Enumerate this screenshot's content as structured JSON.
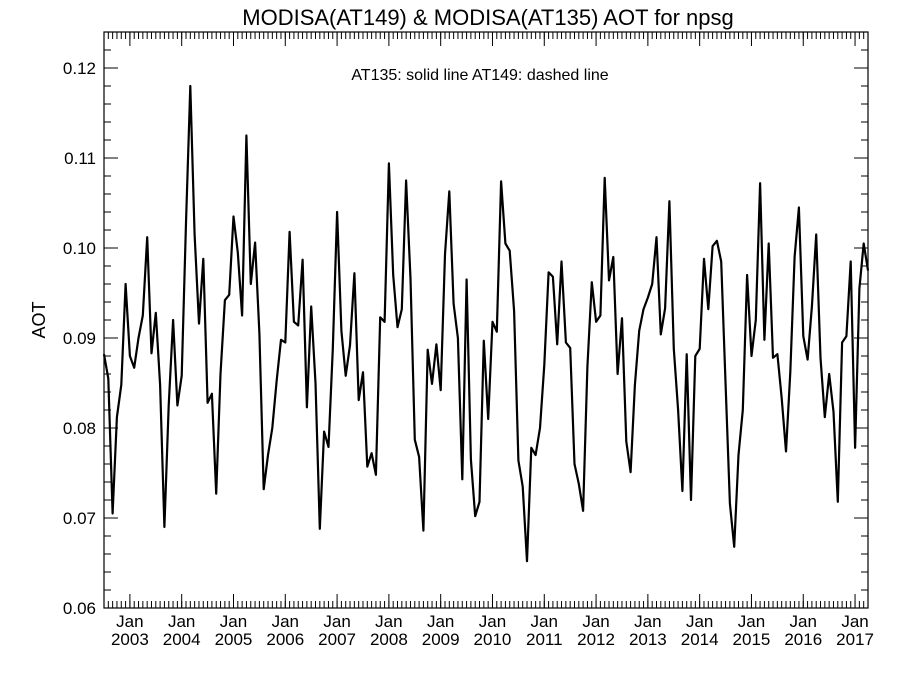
{
  "chart_data": {
    "type": "line",
    "title": "MODISA(AT149) & MODISA(AT135)  AOT for npsg",
    "xlabel": "",
    "ylabel": "AOT",
    "annotation": "AT135: solid line   AT149: dashed line",
    "ylim": [
      0.06,
      0.124
    ],
    "xlim": [
      "2002-07",
      "2017-04"
    ],
    "grid": false,
    "y_ticks": [
      "0.06",
      "0.07",
      "0.08",
      "0.09",
      "0.10",
      "0.11",
      "0.12"
    ],
    "x_ticks": [
      {
        "month": "Jan",
        "year": "2003"
      },
      {
        "month": "Jan",
        "year": "2004"
      },
      {
        "month": "Jan",
        "year": "2005"
      },
      {
        "month": "Jan",
        "year": "2006"
      },
      {
        "month": "Jan",
        "year": "2007"
      },
      {
        "month": "Jan",
        "year": "2008"
      },
      {
        "month": "Jan",
        "year": "2009"
      },
      {
        "month": "Jan",
        "year": "2010"
      },
      {
        "month": "Jan",
        "year": "2011"
      },
      {
        "month": "Jan",
        "year": "2012"
      },
      {
        "month": "Jan",
        "year": "2013"
      },
      {
        "month": "Jan",
        "year": "2014"
      },
      {
        "month": "Jan",
        "year": "2015"
      },
      {
        "month": "Jan",
        "year": "2016"
      },
      {
        "month": "Jan",
        "year": "2017"
      }
    ],
    "series": [
      {
        "style": "solid",
        "color": "#000000",
        "start": "2002-07",
        "values": [
          0.0882,
          0.0855,
          0.0705,
          0.0812,
          0.0848,
          0.096,
          0.088,
          0.0867,
          0.09,
          0.0925,
          0.1012,
          0.0883,
          0.0928,
          0.0848,
          0.069,
          0.0825,
          0.092,
          0.0825,
          0.0858,
          0.1028,
          0.118,
          0.1015,
          0.0916,
          0.0988,
          0.0828,
          0.0838,
          0.0727,
          0.086,
          0.0942,
          0.0948,
          0.1035,
          0.0995,
          0.0925,
          0.1125,
          0.096,
          0.1006,
          0.0905,
          0.0732,
          0.077,
          0.08,
          0.0853,
          0.0898,
          0.0895,
          0.1018,
          0.0918,
          0.0914,
          0.0987,
          0.0823,
          0.0935,
          0.085,
          0.0688,
          0.0796,
          0.0779,
          0.0888,
          0.104,
          0.0908,
          0.0858,
          0.0892,
          0.0972,
          0.0831,
          0.0862,
          0.0757,
          0.0772,
          0.0748,
          0.0923,
          0.0918,
          0.1094,
          0.097,
          0.0912,
          0.0932,
          0.1075,
          0.0966,
          0.0787,
          0.0768,
          0.0686,
          0.0887,
          0.0849,
          0.0893,
          0.0842,
          0.0993,
          0.1063,
          0.0938,
          0.09,
          0.0743,
          0.0965,
          0.0765,
          0.0702,
          0.0718,
          0.0897,
          0.081,
          0.0918,
          0.0907,
          0.1074,
          0.1005,
          0.0997,
          0.093,
          0.0764,
          0.0735,
          0.0652,
          0.0778,
          0.077,
          0.08,
          0.087,
          0.0973,
          0.0968,
          0.0893,
          0.0985,
          0.0895,
          0.0889,
          0.076,
          0.0738,
          0.0708,
          0.0868,
          0.0962,
          0.0918,
          0.0925,
          0.1078,
          0.0964,
          0.099,
          0.086,
          0.0922,
          0.0785,
          0.0751,
          0.0848,
          0.0908,
          0.0932,
          0.0945,
          0.096,
          0.1012,
          0.0904,
          0.0933,
          0.1052,
          0.0888,
          0.082,
          0.073,
          0.0882,
          0.072,
          0.088,
          0.0888,
          0.0988,
          0.0932,
          0.1002,
          0.1008,
          0.0985,
          0.0848,
          0.0716,
          0.0668,
          0.077,
          0.082,
          0.097,
          0.088,
          0.092,
          0.1072,
          0.0898,
          0.1005,
          0.0878,
          0.0882,
          0.0833,
          0.0774,
          0.0862,
          0.099,
          0.1045,
          0.0902,
          0.0876,
          0.0935,
          0.1015,
          0.0878,
          0.0812,
          0.086,
          0.0818,
          0.0718,
          0.0895,
          0.0902,
          0.0985,
          0.0778,
          0.0955,
          0.1005,
          0.0975
        ]
      }
    ]
  }
}
